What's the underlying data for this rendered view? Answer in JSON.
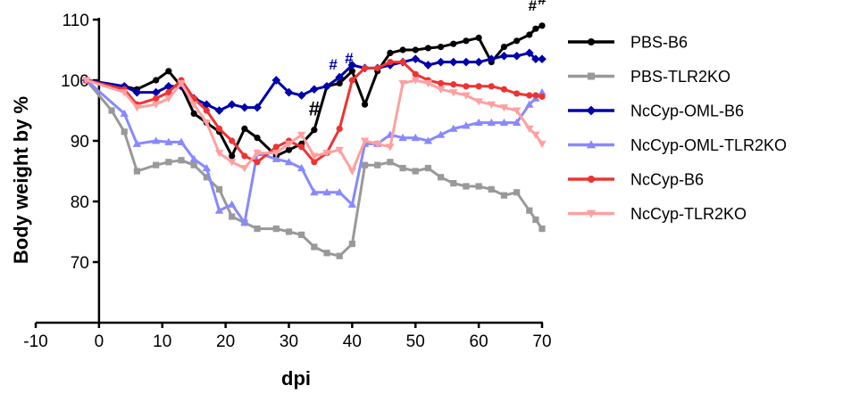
{
  "chart_data": {
    "type": "line",
    "title": "",
    "xlabel": "dpi",
    "ylabel": "Body weight by %",
    "xlim": [
      -10,
      70
    ],
    "ylim": [
      60,
      110
    ],
    "xticks": [
      -10,
      0,
      10,
      20,
      30,
      40,
      50,
      60,
      70
    ],
    "xtick_labels": [
      "-10",
      "0",
      "10",
      "20",
      "30",
      "40",
      "50",
      "60",
      "70"
    ],
    "yticks": [
      70,
      80,
      90,
      100,
      110
    ],
    "ytick_labels": [
      "70",
      "80",
      "90",
      "100",
      "110"
    ],
    "grid": false,
    "legend_position": "right",
    "series": [
      {
        "name": "PBS-B6",
        "color": "#000000",
        "marker": "circle",
        "x": [
          -2,
          4,
          6,
          9,
          11,
          13,
          15,
          17,
          19,
          21,
          23,
          25,
          28,
          30,
          32,
          34,
          36,
          38,
          40,
          42,
          44,
          46,
          48,
          50,
          52,
          54,
          56,
          58,
          60,
          62,
          64,
          66,
          68,
          69,
          70
        ],
        "y": [
          100,
          99,
          98.5,
          100,
          101.5,
          99,
          94.5,
          93,
          91.5,
          87.5,
          92,
          90.5,
          87.5,
          88.5,
          89.5,
          91.8,
          99,
          99.5,
          101.5,
          96,
          101.5,
          104.5,
          105,
          105,
          105.3,
          105.5,
          106,
          106.5,
          107,
          103,
          105.5,
          106.5,
          107.5,
          108.5,
          109
        ]
      },
      {
        "name": "PBS-TLR2KO",
        "color": "#999999",
        "marker": "square",
        "x": [
          -2,
          2,
          4,
          6,
          9,
          11,
          13,
          15,
          17,
          19,
          21,
          23,
          25,
          28,
          30,
          32,
          34,
          36,
          38,
          40,
          42,
          44,
          46,
          48,
          50,
          52,
          54,
          56,
          58,
          60,
          62,
          64,
          66,
          68,
          69,
          70
        ],
        "y": [
          100,
          95,
          91.5,
          85,
          86,
          86.5,
          86.8,
          86,
          84,
          82,
          77.5,
          76.5,
          75.5,
          75.5,
          75,
          74.5,
          72.5,
          71.5,
          71,
          73,
          86,
          86,
          86.5,
          85.5,
          85,
          85.5,
          84,
          83,
          82.5,
          82.5,
          82,
          81,
          81.5,
          78.5,
          77,
          75.5
        ]
      },
      {
        "name": "NcCyp-OML-B6",
        "color": "#0000aa",
        "marker": "diamond",
        "x": [
          -2,
          4,
          6,
          9,
          11,
          13,
          15,
          17,
          19,
          21,
          23,
          25,
          28,
          30,
          32,
          34,
          36,
          38,
          40,
          42,
          44,
          46,
          48,
          50,
          52,
          54,
          56,
          58,
          60,
          62,
          64,
          66,
          68,
          69,
          70
        ],
        "y": [
          100,
          99,
          98,
          98,
          99,
          99,
          97,
          96,
          95,
          96,
          95.5,
          95.5,
          100,
          98,
          97.5,
          98.5,
          99,
          100.5,
          102.5,
          102,
          102,
          102.5,
          103,
          103.5,
          102.5,
          103,
          103,
          103,
          103,
          103.5,
          104,
          104,
          104.5,
          103.5,
          103.5
        ]
      },
      {
        "name": "NcCyp-OML-TLR2KO",
        "color": "#8888ff",
        "marker": "triangle-up",
        "x": [
          -2,
          4,
          6,
          9,
          11,
          13,
          15,
          17,
          19,
          21,
          23,
          25,
          28,
          30,
          32,
          34,
          36,
          38,
          40,
          42,
          44,
          46,
          48,
          50,
          52,
          54,
          56,
          58,
          60,
          62,
          64,
          66,
          68,
          69,
          70
        ],
        "y": [
          100,
          94.5,
          89.5,
          90,
          89.8,
          89.8,
          87,
          85.5,
          78.5,
          79.5,
          76.5,
          88,
          87,
          86.5,
          85.5,
          81.5,
          81.5,
          81.5,
          79.5,
          89.5,
          89.5,
          91,
          90.5,
          90.5,
          90,
          91,
          92,
          92.5,
          93,
          93,
          93,
          93,
          96,
          97,
          98
        ]
      },
      {
        "name": "NcCyp-B6",
        "color": "#ee3333",
        "marker": "circle",
        "x": [
          -2,
          4,
          6,
          9,
          11,
          13,
          15,
          17,
          19,
          21,
          23,
          25,
          28,
          30,
          32,
          34,
          36,
          38,
          40,
          42,
          44,
          46,
          48,
          50,
          52,
          54,
          56,
          58,
          60,
          62,
          64,
          66,
          68,
          69,
          70
        ],
        "y": [
          100,
          98.5,
          96,
          97,
          98,
          100,
          97,
          95,
          92,
          90,
          87.5,
          86.5,
          89,
          90,
          89,
          86.5,
          88,
          92,
          100,
          102,
          102,
          103,
          103,
          101,
          100,
          99.5,
          99.3,
          99,
          99,
          99,
          98.5,
          97.8,
          97.5,
          97.5,
          97.3
        ]
      },
      {
        "name": "NcCyp-TLR2KO",
        "color": "#ffa0a0",
        "marker": "triangle-down",
        "x": [
          -2,
          4,
          6,
          9,
          11,
          13,
          15,
          17,
          19,
          21,
          23,
          25,
          28,
          30,
          32,
          34,
          36,
          38,
          40,
          42,
          44,
          46,
          48,
          50,
          52,
          54,
          56,
          58,
          60,
          62,
          64,
          66,
          68,
          69,
          70
        ],
        "y": [
          100,
          98,
          95.5,
          96,
          97,
          99.5,
          96,
          93,
          88,
          86.5,
          85.5,
          88,
          88,
          89.5,
          91,
          87.5,
          88,
          88.5,
          85,
          90,
          89.5,
          89,
          99.5,
          100,
          99.5,
          98.5,
          98,
          97.5,
          96.5,
          96,
          95.5,
          95,
          92,
          91,
          89.5
        ]
      }
    ],
    "annotations": [
      {
        "text": "#",
        "x": 34,
        "y": 94.2,
        "color": "#000000"
      },
      {
        "text": "#",
        "x": 68.5,
        "y": 111.5,
        "color": "#000000"
      },
      {
        "text": "#",
        "x": 70,
        "y": 112.5,
        "color": "#000000"
      },
      {
        "text": "#",
        "x": 37,
        "y": 101.8,
        "color": "#0000aa"
      },
      {
        "text": "#",
        "x": 39.5,
        "y": 102.8,
        "color": "#0000aa"
      }
    ]
  }
}
